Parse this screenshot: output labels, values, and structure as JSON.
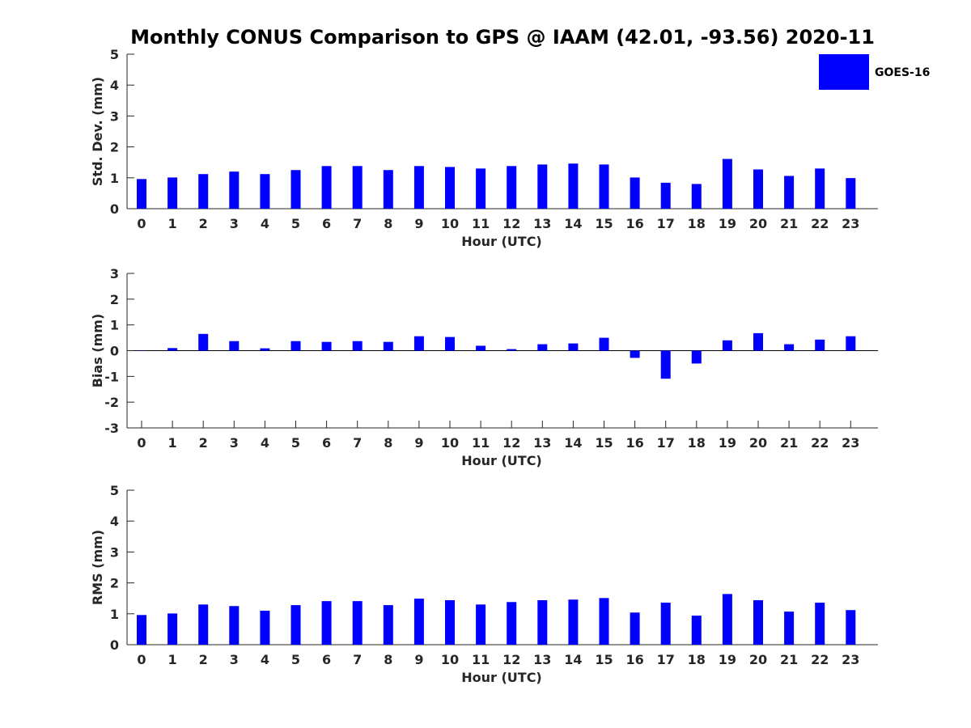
{
  "chart_data": {
    "title": "Monthly CONUS Comparison to GPS @ IAAM (42.01, -93.56) 2020-11",
    "legend": {
      "label": "GOES-16",
      "color": "#0000ff",
      "placement": "top-right"
    },
    "panels": [
      {
        "type": "bar",
        "ylabel": "Std. Dev. (mm)",
        "xlabel": "Hour (UTC)",
        "ylim": [
          0,
          5
        ],
        "yticks": [
          0,
          1,
          2,
          3,
          4,
          5
        ],
        "categories": [
          "0",
          "1",
          "2",
          "3",
          "4",
          "5",
          "6",
          "7",
          "8",
          "9",
          "10",
          "11",
          "12",
          "13",
          "14",
          "15",
          "16",
          "17",
          "18",
          "19",
          "20",
          "21",
          "22",
          "23"
        ],
        "series": [
          {
            "name": "GOES-16",
            "color": "#0000ff",
            "values": [
              0.96,
              1.01,
              1.12,
              1.2,
              1.12,
              1.25,
              1.38,
              1.38,
              1.25,
              1.38,
              1.35,
              1.3,
              1.38,
              1.43,
              1.46,
              1.43,
              1.01,
              0.84,
              0.8,
              1.61,
              1.27,
              1.06,
              1.3,
              0.99
            ]
          }
        ]
      },
      {
        "type": "bar",
        "ylabel": "Bias (mm)",
        "xlabel": "Hour (UTC)",
        "ylim": [
          -3,
          3
        ],
        "yticks": [
          -3,
          -2,
          -1,
          0,
          1,
          2,
          3
        ],
        "categories": [
          "0",
          "1",
          "2",
          "3",
          "4",
          "5",
          "6",
          "7",
          "8",
          "9",
          "10",
          "11",
          "12",
          "13",
          "14",
          "15",
          "16",
          "17",
          "18",
          "19",
          "20",
          "21",
          "22",
          "23"
        ],
        "series": [
          {
            "name": "GOES-16",
            "color": "#0000ff",
            "values": [
              0.0,
              0.1,
              0.65,
              0.37,
              0.09,
              0.37,
              0.34,
              0.37,
              0.34,
              0.56,
              0.53,
              0.19,
              0.06,
              0.25,
              0.28,
              0.5,
              -0.28,
              -1.09,
              -0.5,
              0.4,
              0.68,
              0.25,
              0.43,
              0.56
            ]
          }
        ]
      },
      {
        "type": "bar",
        "ylabel": "RMS (mm)",
        "xlabel": "Hour (UTC)",
        "ylim": [
          0,
          5
        ],
        "yticks": [
          0,
          1,
          2,
          3,
          4,
          5
        ],
        "categories": [
          "0",
          "1",
          "2",
          "3",
          "4",
          "5",
          "6",
          "7",
          "8",
          "9",
          "10",
          "11",
          "12",
          "13",
          "14",
          "15",
          "16",
          "17",
          "18",
          "19",
          "20",
          "21",
          "22",
          "23"
        ],
        "series": [
          {
            "name": "GOES-16",
            "color": "#0000ff",
            "values": [
              0.96,
              1.01,
              1.3,
              1.25,
              1.1,
              1.28,
              1.41,
              1.41,
              1.28,
              1.49,
              1.44,
              1.3,
              1.38,
              1.44,
              1.46,
              1.51,
              1.04,
              1.36,
              0.94,
              1.64,
              1.44,
              1.07,
              1.36,
              1.12
            ]
          }
        ]
      }
    ]
  }
}
